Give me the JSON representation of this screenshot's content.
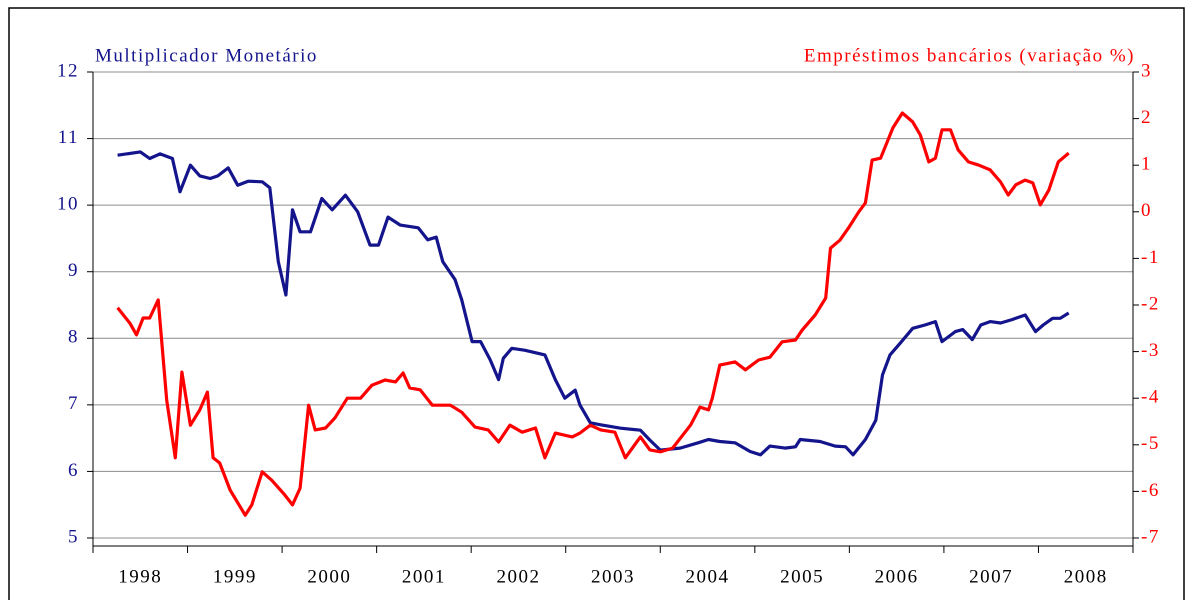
{
  "chart_data": {
    "type": "line",
    "categories": [
      "1998",
      "1999",
      "2000",
      "2001",
      "2002",
      "2003",
      "2004",
      "2005",
      "2006",
      "2007",
      "2008"
    ],
    "xlim": [
      1998,
      2009
    ],
    "ylim": [
      5,
      12
    ],
    "yticks": [
      5,
      6,
      7,
      8,
      9,
      10,
      11,
      12
    ],
    "y2lim": [
      -7,
      3
    ],
    "y2ticks": [
      -7,
      -6,
      -5,
      -4,
      -3,
      -2,
      -1,
      0,
      1,
      2,
      3
    ],
    "grid": true,
    "series": [
      {
        "name": "Multiplicador Monetário",
        "color": "#14148c",
        "axis": "y",
        "x": [
          1998.26,
          1998.5,
          1998.6,
          1998.71,
          1998.84,
          1998.92,
          1999.03,
          1999.13,
          1999.24,
          1999.32,
          1999.43,
          1999.53,
          1999.64,
          1999.79,
          1999.87,
          1999.96,
          2000.04,
          2000.11,
          2000.19,
          2000.3,
          2000.42,
          2000.53,
          2000.67,
          2000.8,
          2000.93,
          2001.02,
          2001.12,
          2001.25,
          2001.44,
          2001.54,
          2001.63,
          2001.7,
          2001.83,
          2001.9,
          2002.01,
          2002.1,
          2002.2,
          2002.29,
          2002.34,
          2002.43,
          2002.57,
          2002.78,
          2002.89,
          2002.99,
          2003.1,
          2003.15,
          2003.26,
          2003.37,
          2003.58,
          2003.79,
          2003.89,
          2004.0,
          2004.21,
          2004.4,
          2004.51,
          2004.63,
          2004.79,
          2004.95,
          2005.06,
          2005.16,
          2005.32,
          2005.43,
          2005.48,
          2005.69,
          2005.85,
          2005.96,
          2006.04,
          2006.17,
          2006.28,
          2006.35,
          2006.43,
          2006.54,
          2006.67,
          2006.8,
          2006.91,
          2006.98,
          2007.12,
          2007.2,
          2007.3,
          2007.39,
          2007.49,
          2007.6,
          2007.72,
          2007.86,
          2007.97,
          2008.05,
          2008.15,
          2008.23,
          2008.32
        ],
        "values": [
          10.75,
          10.8,
          10.7,
          10.77,
          10.7,
          10.2,
          10.6,
          10.44,
          10.4,
          10.44,
          10.56,
          10.3,
          10.36,
          10.35,
          10.26,
          9.15,
          8.65,
          9.93,
          9.6,
          9.6,
          10.1,
          9.93,
          10.15,
          9.9,
          9.4,
          9.4,
          9.82,
          9.7,
          9.66,
          9.48,
          9.52,
          9.15,
          8.88,
          8.58,
          7.95,
          7.95,
          7.68,
          7.38,
          7.7,
          7.85,
          7.82,
          7.75,
          7.38,
          7.1,
          7.22,
          7.0,
          6.73,
          6.7,
          6.65,
          6.62,
          6.47,
          6.32,
          6.35,
          6.43,
          6.48,
          6.45,
          6.43,
          6.3,
          6.25,
          6.38,
          6.35,
          6.37,
          6.48,
          6.45,
          6.38,
          6.37,
          6.25,
          6.48,
          6.77,
          7.45,
          7.75,
          7.93,
          8.15,
          8.2,
          8.25,
          7.95,
          8.1,
          8.13,
          7.98,
          8.2,
          8.25,
          8.23,
          8.28,
          8.35,
          8.1,
          8.2,
          8.3,
          8.3,
          8.38
        ]
      },
      {
        "name": "Empréstimos bancários (variação %)",
        "color": "#ff0000",
        "axis": "y2",
        "x": [
          1998.26,
          1998.39,
          1998.46,
          1998.53,
          1998.6,
          1998.69,
          1998.78,
          1998.87,
          1998.94,
          1999.03,
          1999.13,
          1999.21,
          1999.27,
          1999.34,
          1999.45,
          1999.61,
          1999.68,
          1999.79,
          1999.89,
          2000.03,
          2000.11,
          2000.19,
          2000.28,
          2000.35,
          2000.46,
          2000.56,
          2000.69,
          2000.83,
          2000.95,
          2001.09,
          2001.2,
          2001.28,
          2001.35,
          2001.46,
          2001.59,
          2001.78,
          2001.9,
          2002.04,
          2002.18,
          2002.29,
          2002.41,
          2002.54,
          2002.68,
          2002.78,
          2002.89,
          2003.07,
          2003.15,
          2003.26,
          2003.37,
          2003.52,
          2003.63,
          2003.79,
          2003.89,
          2004.0,
          2004.13,
          2004.32,
          2004.42,
          2004.51,
          2004.55,
          2004.63,
          2004.79,
          2004.9,
          2005.04,
          2005.16,
          2005.29,
          2005.43,
          2005.5,
          2005.64,
          2005.75,
          2005.8,
          2005.9,
          2005.99,
          2006.1,
          2006.17,
          2006.24,
          2006.33,
          2006.46,
          2006.56,
          2006.67,
          2006.75,
          2006.84,
          2006.91,
          2006.98,
          2007.07,
          2007.15,
          2007.26,
          2007.37,
          2007.49,
          2007.6,
          2007.68,
          2007.76,
          2007.86,
          2007.94,
          2008.02,
          2008.11,
          2008.21,
          2008.32
        ],
        "values": [
          -2.06,
          -2.39,
          -2.64,
          -2.28,
          -2.28,
          -1.89,
          -4.04,
          -5.28,
          -3.44,
          -4.58,
          -4.25,
          -3.87,
          -5.28,
          -5.39,
          -5.97,
          -6.51,
          -6.29,
          -5.58,
          -5.76,
          -6.08,
          -6.29,
          -5.93,
          -4.15,
          -4.68,
          -4.64,
          -4.42,
          -4.0,
          -4.0,
          -3.72,
          -3.61,
          -3.65,
          -3.46,
          -3.78,
          -3.82,
          -4.15,
          -4.15,
          -4.3,
          -4.62,
          -4.68,
          -4.94,
          -4.58,
          -4.73,
          -4.64,
          -5.28,
          -4.75,
          -4.83,
          -4.75,
          -4.58,
          -4.68,
          -4.73,
          -5.28,
          -4.83,
          -5.11,
          -5.15,
          -5.07,
          -4.58,
          -4.19,
          -4.25,
          -4.0,
          -3.29,
          -3.22,
          -3.39,
          -3.18,
          -3.12,
          -2.79,
          -2.75,
          -2.54,
          -2.21,
          -1.85,
          -0.78,
          -0.61,
          -0.35,
          0.0,
          0.19,
          1.11,
          1.15,
          1.8,
          2.12,
          1.93,
          1.65,
          1.07,
          1.15,
          1.76,
          1.76,
          1.33,
          1.07,
          1.0,
          0.9,
          0.64,
          0.36,
          0.58,
          0.68,
          0.62,
          0.15,
          0.47,
          1.07,
          1.26
        ]
      }
    ]
  }
}
